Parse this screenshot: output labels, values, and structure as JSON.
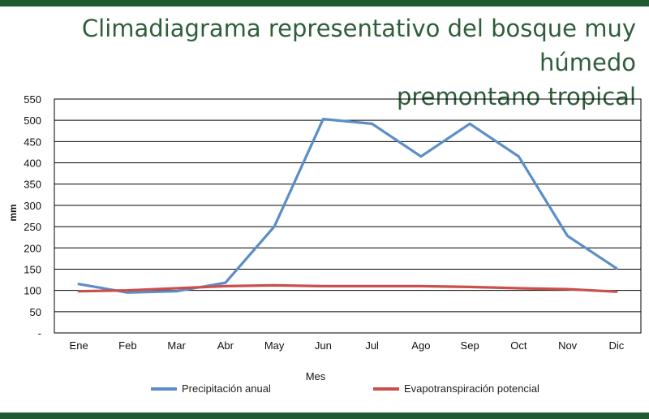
{
  "title_line1": "Climadiagrama representativo del bosque muy húmedo",
  "title_line2": "premontano tropical",
  "colors": {
    "band": "#1f5a32",
    "title": "#2e5e3a",
    "precip": "#5b8ec7",
    "evapo": "#c9504b",
    "grid": "#000000"
  },
  "chart_data": {
    "type": "line",
    "title": "Climadiagrama representativo del bosque muy húmedo premontano tropical",
    "xlabel": "Mes",
    "ylabel": "mm",
    "categories": [
      "Ene",
      "Feb",
      "Mar",
      "Abr",
      "May",
      "Jun",
      "Jul",
      "Ago",
      "Sep",
      "Oct",
      "Nov",
      "Dic"
    ],
    "yticks": [
      "-",
      "50",
      "100",
      "150",
      "200",
      "250",
      "300",
      "350",
      "400",
      "450",
      "500",
      "550"
    ],
    "ylim": [
      0,
      550
    ],
    "grid": true,
    "legend_position": "bottom",
    "series": [
      {
        "name": "Precipitación anual",
        "color": "#5b8ec7",
        "values": [
          115,
          95,
          98,
          118,
          250,
          503,
          492,
          415,
          492,
          415,
          228,
          152
        ]
      },
      {
        "name": "Evapotranspiración potencial",
        "color": "#c9504b",
        "values": [
          98,
          100,
          105,
          110,
          112,
          110,
          110,
          110,
          108,
          105,
          103,
          97
        ]
      }
    ]
  }
}
